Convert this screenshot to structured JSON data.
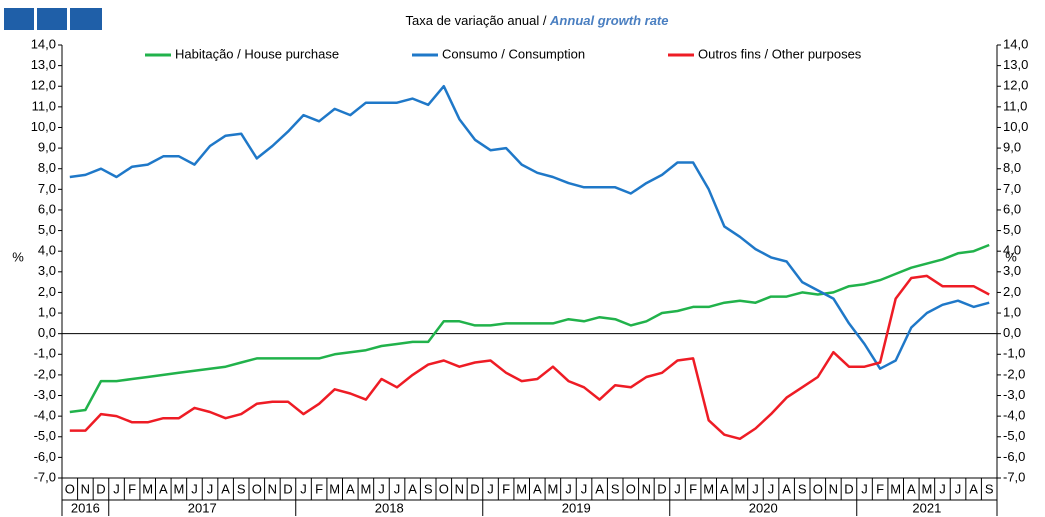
{
  "chart_data": {
    "type": "line",
    "title_pt": "Taxa de variação anual / ",
    "title_en": "Annual growth rate",
    "ylabel": "%",
    "categories": [
      "O",
      "N",
      "D",
      "J",
      "F",
      "M",
      "A",
      "M",
      "J",
      "J",
      "A",
      "S",
      "O",
      "N",
      "D",
      "J",
      "F",
      "M",
      "A",
      "M",
      "J",
      "J",
      "A",
      "S",
      "O",
      "N",
      "D",
      "J",
      "F",
      "M",
      "A",
      "M",
      "J",
      "J",
      "A",
      "S",
      "O",
      "N",
      "D",
      "J",
      "F",
      "M",
      "A",
      "M",
      "J",
      "J",
      "A",
      "S",
      "O",
      "N",
      "D",
      "J",
      "F",
      "M",
      "A",
      "M",
      "J",
      "J",
      "A",
      "S"
    ],
    "years": [
      "2016",
      "2017",
      "2018",
      "2019",
      "2020",
      "2021"
    ],
    "series": [
      {
        "name": "Habitação / House purchase",
        "color": "#21b24b",
        "values": [
          -3.8,
          -3.7,
          -2.3,
          -2.3,
          -2.2,
          -2.1,
          -2.0,
          -1.9,
          -1.8,
          -1.7,
          -1.6,
          -1.4,
          -1.2,
          -1.2,
          -1.2,
          -1.2,
          -1.2,
          -1.0,
          -0.9,
          -0.8,
          -0.6,
          -0.5,
          -0.4,
          -0.4,
          0.6,
          0.6,
          0.4,
          0.4,
          0.5,
          0.5,
          0.5,
          0.5,
          0.7,
          0.6,
          0.8,
          0.7,
          0.4,
          0.6,
          1.0,
          1.1,
          1.3,
          1.3,
          1.5,
          1.6,
          1.5,
          1.8,
          1.8,
          2.0,
          1.9,
          2.0,
          2.3,
          2.4,
          2.6,
          2.9,
          3.2,
          3.4,
          3.6,
          3.9,
          4.0,
          4.3
        ]
      },
      {
        "name": "Consumo / Consumption",
        "color": "#1f78c8",
        "values": [
          7.6,
          7.7,
          8.0,
          7.6,
          8.1,
          8.2,
          8.6,
          8.6,
          8.2,
          9.1,
          9.6,
          9.7,
          8.5,
          9.1,
          9.8,
          10.6,
          10.3,
          10.9,
          10.6,
          11.2,
          11.2,
          11.2,
          11.4,
          11.1,
          12.0,
          10.4,
          9.4,
          8.9,
          9.0,
          8.2,
          7.8,
          7.6,
          7.3,
          7.1,
          7.1,
          7.1,
          6.8,
          7.3,
          7.7,
          8.3,
          8.3,
          7.0,
          5.2,
          4.7,
          4.1,
          3.7,
          3.5,
          2.5,
          2.1,
          1.7,
          0.5,
          -0.5,
          -1.7,
          -1.3,
          0.3,
          1.0,
          1.4,
          1.6,
          1.3,
          1.5
        ]
      },
      {
        "name": "Outros fins / Other purposes",
        "color": "#ee1c25",
        "values": [
          -4.7,
          -4.7,
          -3.9,
          -4.0,
          -4.3,
          -4.3,
          -4.1,
          -4.1,
          -3.6,
          -3.8,
          -4.1,
          -3.9,
          -3.4,
          -3.3,
          -3.3,
          -3.9,
          -3.4,
          -2.7,
          -2.9,
          -3.2,
          -2.2,
          -2.6,
          -2.0,
          -1.5,
          -1.3,
          -1.6,
          -1.4,
          -1.3,
          -1.9,
          -2.3,
          -2.2,
          -1.6,
          -2.3,
          -2.6,
          -3.2,
          -2.5,
          -2.6,
          -2.1,
          -1.9,
          -1.3,
          -1.2,
          -4.2,
          -4.9,
          -5.1,
          -4.6,
          -3.9,
          -3.1,
          -2.6,
          -2.1,
          -0.9,
          -1.6,
          -1.6,
          -1.4,
          1.7,
          2.7,
          2.8,
          2.3,
          2.3,
          2.3,
          1.9
        ]
      }
    ],
    "ylim": [
      -7,
      14
    ],
    "yticks": [
      {
        "value": -7,
        "label": "-7,0"
      },
      {
        "value": -6,
        "label": "-6,0"
      },
      {
        "value": -5,
        "label": "-5,0"
      },
      {
        "value": -4,
        "label": "-4,0"
      },
      {
        "value": -3,
        "label": "-3,0"
      },
      {
        "value": -2,
        "label": "-2,0"
      },
      {
        "value": -1,
        "label": "-1,0"
      },
      {
        "value": 0,
        "label": "0,0"
      },
      {
        "value": 1,
        "label": "1,0"
      },
      {
        "value": 2,
        "label": "2,0"
      },
      {
        "value": 3,
        "label": "3,0"
      },
      {
        "value": 4,
        "label": "4,0"
      },
      {
        "value": 5,
        "label": "5,0"
      },
      {
        "value": 6,
        "label": "6,0"
      },
      {
        "value": 7,
        "label": "7,0"
      },
      {
        "value": 8,
        "label": "8,0"
      },
      {
        "value": 9,
        "label": "9,0"
      },
      {
        "value": 10,
        "label": "10,0"
      },
      {
        "value": 11,
        "label": "11,0"
      },
      {
        "value": 12,
        "label": "12,0"
      },
      {
        "value": 13,
        "label": "13,0"
      },
      {
        "value": 14,
        "label": "14,0"
      }
    ],
    "grid": false
  }
}
